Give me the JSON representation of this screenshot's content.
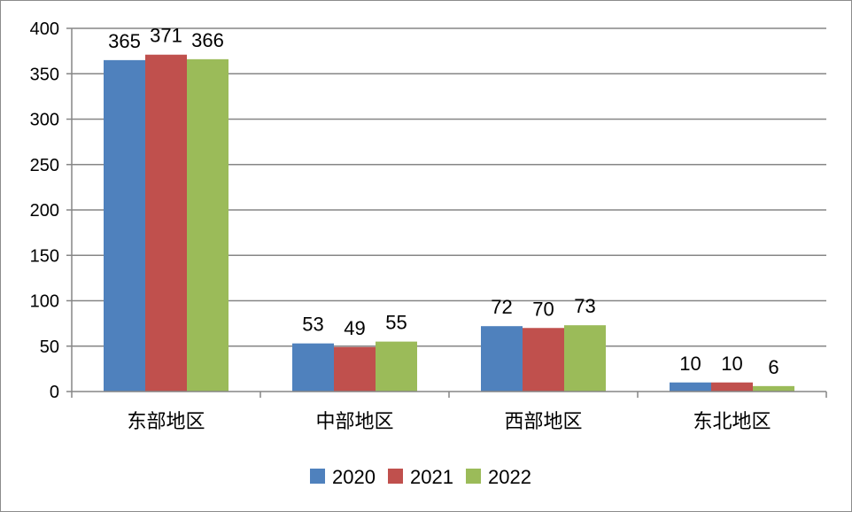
{
  "chart_data": {
    "type": "bar",
    "categories": [
      "东部地区",
      "中部地区",
      "西部地区",
      "东北地区"
    ],
    "series": [
      {
        "name": "2020",
        "color": "#4f81bd",
        "values": [
          365,
          53,
          72,
          10
        ]
      },
      {
        "name": "2021",
        "color": "#c0504d",
        "values": [
          371,
          49,
          70,
          10
        ]
      },
      {
        "name": "2022",
        "color": "#9bbb59",
        "values": [
          366,
          55,
          73,
          6
        ]
      }
    ],
    "ylim": [
      0,
      400
    ],
    "yticks": [
      0,
      50,
      100,
      150,
      200,
      250,
      300,
      350,
      400
    ],
    "grid": true,
    "legend_position": "bottom",
    "data_labels": true
  }
}
